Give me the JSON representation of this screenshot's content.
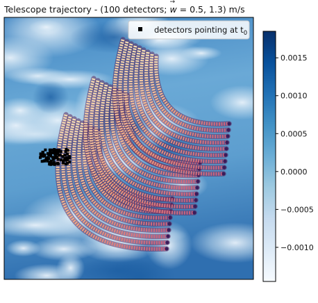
{
  "title": {
    "prefix": "Telescope trajectory - (100 detectors; ",
    "vector_symbol": "w",
    "suffix": " =  0.5, 1.3) m/s"
  },
  "legend": {
    "label_main": "detectors pointing at t",
    "label_sub": "0",
    "placement": "upper-right"
  },
  "chart_data": {
    "type": "heatmap",
    "title": "Telescope trajectory - (100 detectors; w = 0.5, 1.3) m/s",
    "xlabel": "",
    "ylabel": "",
    "colorbar": {
      "range": [
        -0.00145,
        0.00185
      ],
      "ticks": [
        {
          "value": 0.0015,
          "label": "0.0015"
        },
        {
          "value": 0.001,
          "label": "0.0010"
        },
        {
          "value": 0.0005,
          "label": "0.0005"
        },
        {
          "value": 0.0,
          "label": "0.0000"
        },
        {
          "value": -0.0005,
          "label": "−0.0005"
        },
        {
          "value": -0.001,
          "label": "−0.0010"
        }
      ],
      "colormap": [
        "#f7fbff",
        "#deebf7",
        "#c6dbef",
        "#9ecae1",
        "#6baed6",
        "#4292c6",
        "#2171b5",
        "#08519c",
        "#08306b"
      ]
    },
    "overlays": [
      {
        "name": "detector trajectories",
        "style": "scanning arcs (magma)",
        "count": 100
      },
      {
        "name": "detectors pointing at t0",
        "marker": "black square"
      }
    ],
    "grid": false,
    "legend": "upper-right"
  }
}
